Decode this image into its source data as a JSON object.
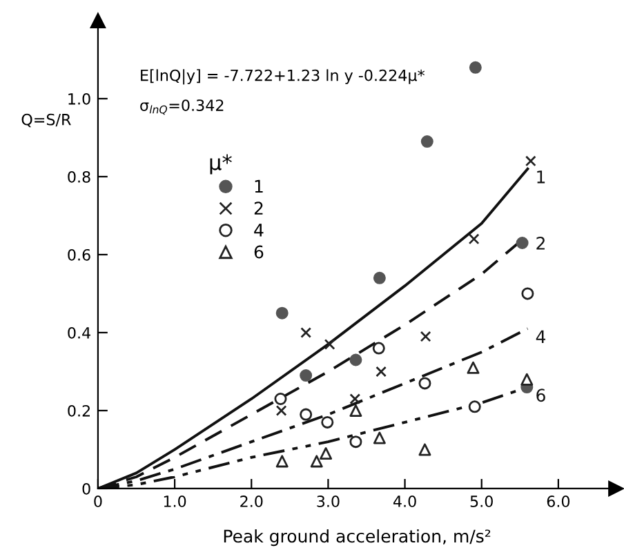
{
  "chart_data": {
    "type": "scatter",
    "xlabel": "Peak ground acceleration, m/s²",
    "ylabel": "Q=S/R",
    "legend_title": "μ*",
    "annotations": [
      "E[lnQ|y] = -7.722+1.23 ln y -0.224μ*",
      "σ$_{lnQ}$=0.342"
    ],
    "xlim": [
      0,
      6.75
    ],
    "ylim": [
      0,
      1.2
    ],
    "xticks": [
      0,
      {
        "value": 1,
        "label": "1.0"
      },
      {
        "value": 2,
        "label": "2.0"
      },
      {
        "value": 3,
        "label": "3.0"
      },
      {
        "value": 4,
        "label": "4.0"
      },
      {
        "value": 5,
        "label": "5.0"
      },
      {
        "value": 6,
        "label": "6.0"
      }
    ],
    "yticks": [
      0,
      0.2,
      0.4,
      0.6,
      0.8,
      {
        "value": 1,
        "label": "1.0"
      }
    ],
    "grid": false,
    "legend": "top left",
    "series": [
      {
        "name": "1",
        "marker": "circle",
        "color": "#555555",
        "x": [
          2.4,
          2.71,
          3.36,
          3.67,
          4.29,
          4.92,
          5.53,
          5.59
        ],
        "values": [
          0.45,
          0.29,
          0.33,
          0.54,
          0.89,
          1.08,
          0.63,
          0.26
        ]
      },
      {
        "name": "2",
        "marker": "cross",
        "color": "#222222",
        "x": [
          2.39,
          2.71,
          3.02,
          3.35,
          3.69,
          4.27,
          4.9,
          5.64
        ],
        "values": [
          0.2,
          0.4,
          0.37,
          0.23,
          0.3,
          0.39,
          0.64,
          0.84
        ]
      },
      {
        "name": "4",
        "marker": "circle-open",
        "color": "#222222",
        "x": [
          2.38,
          2.71,
          2.99,
          3.36,
          3.66,
          4.26,
          4.91,
          5.6
        ],
        "values": [
          0.23,
          0.19,
          0.17,
          0.12,
          0.36,
          0.27,
          0.21,
          0.5
        ]
      },
      {
        "name": "6",
        "marker": "triangle-open",
        "color": "#222222",
        "x": [
          2.4,
          2.85,
          2.97,
          3.36,
          3.67,
          4.26,
          4.89,
          5.59
        ],
        "values": [
          0.07,
          0.07,
          0.09,
          0.2,
          0.13,
          0.1,
          0.31,
          0.28
        ]
      },
      {
        "name": "1",
        "type": "line",
        "line_style": "solid",
        "color": "#111111",
        "x": [
          0,
          0.5,
          1,
          2,
          3,
          4,
          5,
          5.6
        ],
        "values": [
          0,
          0.04,
          0.1,
          0.23,
          0.37,
          0.52,
          0.68,
          0.82
        ]
      },
      {
        "name": "2",
        "type": "line",
        "line_style": "dashed",
        "color": "#111111",
        "x": [
          0,
          0.5,
          1,
          2,
          3,
          4,
          5,
          5.6
        ],
        "values": [
          0,
          0.03,
          0.08,
          0.19,
          0.3,
          0.42,
          0.55,
          0.65
        ]
      },
      {
        "name": "4",
        "type": "line",
        "line_style": "dashdot",
        "color": "#111111",
        "x": [
          0,
          0.5,
          1,
          2,
          3,
          4,
          5,
          5.6
        ],
        "values": [
          0,
          0.02,
          0.05,
          0.12,
          0.19,
          0.27,
          0.35,
          0.41
        ]
      },
      {
        "name": "6",
        "type": "line",
        "line_style": "dashdotdot",
        "color": "#111111",
        "x": [
          0,
          0.5,
          1,
          2,
          3,
          4,
          5,
          5.6
        ],
        "values": [
          0,
          0.01,
          0.03,
          0.08,
          0.12,
          0.17,
          0.22,
          0.26
        ]
      }
    ]
  }
}
